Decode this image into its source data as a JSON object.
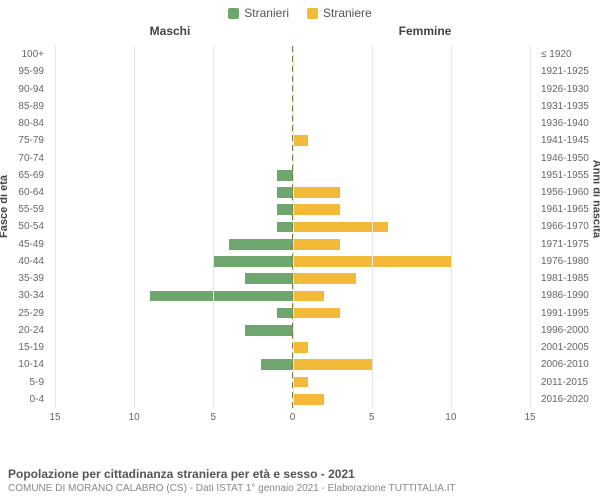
{
  "legend": {
    "male": {
      "label": "Stranieri",
      "color": "#6fa66e"
    },
    "female": {
      "label": "Straniere",
      "color": "#f3ba3a"
    }
  },
  "header": {
    "left": "Maschi",
    "right": "Femmine"
  },
  "axis": {
    "left_title": "Fasce di età",
    "right_title": "Anni di nascita"
  },
  "xaxis": {
    "min": -15,
    "max": 15,
    "ticks": [
      15,
      10,
      5,
      0,
      5,
      10,
      15
    ],
    "tick_positions_pct": [
      0,
      16.667,
      33.333,
      50,
      66.667,
      83.333,
      100
    ]
  },
  "colors": {
    "grid": "#e6e6e6",
    "center": "#7a7a3a",
    "text": "#666666",
    "bg": "#ffffff"
  },
  "rows": [
    {
      "age": "100+",
      "year": "≤ 1920",
      "m": 0,
      "f": 0
    },
    {
      "age": "95-99",
      "year": "1921-1925",
      "m": 0,
      "f": 0
    },
    {
      "age": "90-94",
      "year": "1926-1930",
      "m": 0,
      "f": 0
    },
    {
      "age": "85-89",
      "year": "1931-1935",
      "m": 0,
      "f": 0
    },
    {
      "age": "80-84",
      "year": "1936-1940",
      "m": 0,
      "f": 0
    },
    {
      "age": "75-79",
      "year": "1941-1945",
      "m": 0,
      "f": 1
    },
    {
      "age": "70-74",
      "year": "1946-1950",
      "m": 0,
      "f": 0
    },
    {
      "age": "65-69",
      "year": "1951-1955",
      "m": 1,
      "f": 0
    },
    {
      "age": "60-64",
      "year": "1956-1960",
      "m": 1,
      "f": 3
    },
    {
      "age": "55-59",
      "year": "1961-1965",
      "m": 1,
      "f": 3
    },
    {
      "age": "50-54",
      "year": "1966-1970",
      "m": 1,
      "f": 6
    },
    {
      "age": "45-49",
      "year": "1971-1975",
      "m": 4,
      "f": 3
    },
    {
      "age": "40-44",
      "year": "1976-1980",
      "m": 5,
      "f": 10
    },
    {
      "age": "35-39",
      "year": "1981-1985",
      "m": 3,
      "f": 4
    },
    {
      "age": "30-34",
      "year": "1986-1990",
      "m": 9,
      "f": 2
    },
    {
      "age": "25-29",
      "year": "1991-1995",
      "m": 1,
      "f": 3
    },
    {
      "age": "20-24",
      "year": "1996-2000",
      "m": 3,
      "f": 0
    },
    {
      "age": "15-19",
      "year": "2001-2005",
      "m": 0,
      "f": 1
    },
    {
      "age": "10-14",
      "year": "2006-2010",
      "m": 2,
      "f": 5
    },
    {
      "age": "5-9",
      "year": "2011-2015",
      "m": 0,
      "f": 1
    },
    {
      "age": "0-4",
      "year": "2016-2020",
      "m": 0,
      "f": 2
    }
  ],
  "footer": {
    "title": "Popolazione per cittadinanza straniera per età e sesso - 2021",
    "sub": "COMUNE DI MORANO CALABRO (CS) - Dati ISTAT 1° gennaio 2021 - Elaborazione TUTTITALIA.IT"
  },
  "chart": {
    "type": "population-pyramid",
    "scale_max": 15
  }
}
